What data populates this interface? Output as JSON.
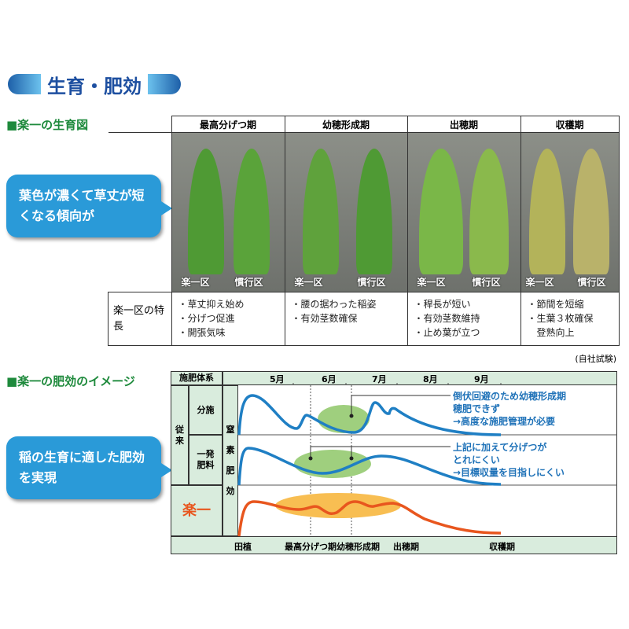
{
  "title": "生育・肥効",
  "section1": {
    "heading": "■楽一の生育図",
    "stages": [
      "最高分げつ期",
      "幼穂形成期",
      "出穂期",
      "収穫期"
    ],
    "photo_labels": {
      "rakuichi": "楽一区",
      "conventional": "慣行区"
    },
    "traits_label": "楽一区の特長",
    "traits": [
      [
        "・草丈抑え始め",
        "・分げつ促進",
        "・開張気味"
      ],
      [
        "・腰の据わった稲姿",
        "・有効茎数確保"
      ],
      [
        "・稈長が短い",
        "・有効茎数維持",
        "・止め葉が立つ"
      ],
      [
        "・節間を短縮",
        "・生葉３枚確保",
        "　登熟向上"
      ]
    ],
    "callout": "葉色が濃くて草丈が短くなる傾向が",
    "source": "(自社試験)"
  },
  "section2": {
    "heading": "■楽一の肥効のイメージ",
    "callout": "稲の生育に適した肥効を実現",
    "header_label": "施肥体系",
    "months": [
      "5月",
      "6月",
      "7月",
      "8月",
      "9月"
    ],
    "group": "従来",
    "rows": [
      "分施",
      "一発肥料",
      "楽一"
    ],
    "y_label": "窒素肥効",
    "stages": [
      "田植",
      "最高分げつ期",
      "幼穂形成期",
      "出穂期",
      "収穫期"
    ],
    "note1": [
      "倒伏回避のため幼穂形成期",
      "穂肥できず",
      "→高度な施肥管理が必要"
    ],
    "note2": [
      "上記に加えて分げつが",
      "とれにくい",
      "→目標収量を目指しにくい"
    ],
    "colors": {
      "conventional": "#1f7fc4",
      "rakuichi": "#e8561e",
      "green_zone": "#9fcf7e",
      "orange_zone": "#f8be52"
    }
  }
}
